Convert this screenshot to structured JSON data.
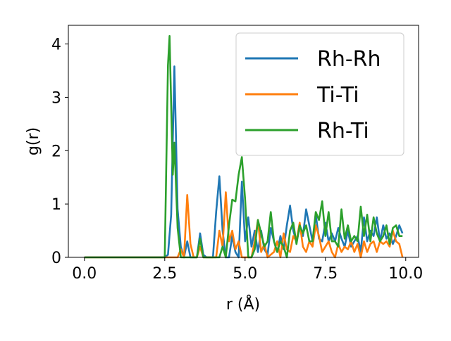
{
  "chart_data": {
    "type": "line",
    "xlabel": "r (Å)",
    "ylabel": "g(r)",
    "xlim": [
      -0.5,
      10.4
    ],
    "ylim": [
      0,
      4.35
    ],
    "xticks": [
      0.0,
      2.5,
      5.0,
      7.5,
      10.0
    ],
    "xtick_labels": [
      "0.0",
      "2.5",
      "5.0",
      "7.5",
      "10.0"
    ],
    "yticks": [
      0,
      1,
      2,
      3,
      4
    ],
    "ytick_labels": [
      "0",
      "1",
      "2",
      "3",
      "4"
    ],
    "grid": false,
    "legend_position": "upper right",
    "series": [
      {
        "name": "Rh-Rh",
        "color": "#1f77b4",
        "points": [
          [
            0.0,
            0.0
          ],
          [
            2.5,
            0.0
          ],
          [
            2.6,
            0.05
          ],
          [
            2.7,
            0.8
          ],
          [
            2.8,
            3.58
          ],
          [
            2.9,
            0.9
          ],
          [
            3.0,
            0.2
          ],
          [
            3.1,
            0.0
          ],
          [
            3.2,
            0.3
          ],
          [
            3.3,
            0.0
          ],
          [
            3.5,
            0.0
          ],
          [
            3.6,
            0.45
          ],
          [
            3.7,
            0.05
          ],
          [
            3.8,
            0.0
          ],
          [
            4.0,
            0.0
          ],
          [
            4.1,
            0.85
          ],
          [
            4.2,
            1.52
          ],
          [
            4.3,
            0.5
          ],
          [
            4.4,
            0.0
          ],
          [
            4.5,
            0.0
          ],
          [
            4.6,
            0.4
          ],
          [
            4.7,
            0.1
          ],
          [
            4.8,
            0.0
          ],
          [
            4.9,
            1.42
          ],
          [
            5.0,
            0.3
          ],
          [
            5.1,
            0.75
          ],
          [
            5.2,
            0.2
          ],
          [
            5.3,
            0.5
          ],
          [
            5.4,
            0.1
          ],
          [
            5.5,
            0.5
          ],
          [
            5.6,
            0.15
          ],
          [
            5.7,
            0.05
          ],
          [
            5.8,
            0.55
          ],
          [
            5.9,
            0.3
          ],
          [
            6.0,
            0.1
          ],
          [
            6.1,
            0.4
          ],
          [
            6.2,
            0.15
          ],
          [
            6.3,
            0.6
          ],
          [
            6.4,
            0.97
          ],
          [
            6.5,
            0.5
          ],
          [
            6.6,
            0.3
          ],
          [
            6.7,
            0.55
          ],
          [
            6.8,
            0.4
          ],
          [
            6.9,
            0.9
          ],
          [
            7.0,
            0.6
          ],
          [
            7.1,
            0.3
          ],
          [
            7.2,
            0.8
          ],
          [
            7.3,
            0.35
          ],
          [
            7.4,
            0.3
          ],
          [
            7.5,
            0.65
          ],
          [
            7.6,
            0.3
          ],
          [
            7.7,
            0.45
          ],
          [
            7.8,
            0.3
          ],
          [
            7.9,
            0.55
          ],
          [
            8.0,
            0.35
          ],
          [
            8.1,
            0.2
          ],
          [
            8.2,
            0.5
          ],
          [
            8.3,
            0.2
          ],
          [
            8.4,
            0.3
          ],
          [
            8.5,
            0.4
          ],
          [
            8.6,
            0.1
          ],
          [
            8.7,
            0.75
          ],
          [
            8.8,
            0.3
          ],
          [
            8.9,
            0.5
          ],
          [
            9.0,
            0.4
          ],
          [
            9.1,
            0.75
          ],
          [
            9.2,
            0.3
          ],
          [
            9.3,
            0.6
          ],
          [
            9.4,
            0.35
          ],
          [
            9.5,
            0.45
          ],
          [
            9.6,
            0.25
          ],
          [
            9.7,
            0.4
          ],
          [
            9.8,
            0.6
          ],
          [
            9.9,
            0.45
          ]
        ]
      },
      {
        "name": "Ti-Ti",
        "color": "#ff7f0e",
        "points": [
          [
            0.0,
            0.0
          ],
          [
            2.5,
            0.0
          ],
          [
            2.9,
            0.0
          ],
          [
            3.0,
            0.15
          ],
          [
            3.1,
            0.0
          ],
          [
            3.2,
            1.17
          ],
          [
            3.3,
            0.25
          ],
          [
            3.4,
            0.0
          ],
          [
            3.5,
            0.0
          ],
          [
            3.6,
            0.2
          ],
          [
            3.7,
            0.0
          ],
          [
            4.1,
            0.0
          ],
          [
            4.2,
            0.5
          ],
          [
            4.3,
            0.2
          ],
          [
            4.4,
            1.22
          ],
          [
            4.5,
            0.3
          ],
          [
            4.6,
            0.5
          ],
          [
            4.7,
            0.15
          ],
          [
            4.8,
            0.3
          ],
          [
            4.9,
            0.0
          ],
          [
            5.2,
            0.0
          ],
          [
            5.3,
            0.3
          ],
          [
            5.4,
            0.7
          ],
          [
            5.5,
            0.1
          ],
          [
            5.6,
            0.25
          ],
          [
            5.7,
            0.0
          ],
          [
            5.9,
            0.1
          ],
          [
            6.0,
            0.3
          ],
          [
            6.1,
            0.0
          ],
          [
            6.2,
            0.45
          ],
          [
            6.3,
            0.15
          ],
          [
            6.4,
            0.1
          ],
          [
            6.5,
            0.4
          ],
          [
            6.6,
            0.3
          ],
          [
            6.7,
            0.65
          ],
          [
            6.8,
            0.2
          ],
          [
            6.9,
            0.1
          ],
          [
            7.0,
            0.3
          ],
          [
            7.1,
            0.2
          ],
          [
            7.2,
            0.6
          ],
          [
            7.3,
            0.4
          ],
          [
            7.4,
            0.1
          ],
          [
            7.5,
            0.2
          ],
          [
            7.6,
            0.3
          ],
          [
            7.7,
            0.1
          ],
          [
            7.8,
            0.0
          ],
          [
            7.9,
            0.25
          ],
          [
            8.0,
            0.1
          ],
          [
            8.1,
            0.2
          ],
          [
            8.2,
            0.15
          ],
          [
            8.3,
            0.3
          ],
          [
            8.4,
            0.1
          ],
          [
            8.5,
            0.25
          ],
          [
            8.6,
            0.0
          ],
          [
            8.7,
            0.3
          ],
          [
            8.8,
            0.1
          ],
          [
            8.9,
            0.25
          ],
          [
            9.0,
            0.3
          ],
          [
            9.1,
            0.1
          ],
          [
            9.2,
            0.3
          ],
          [
            9.3,
            0.25
          ],
          [
            9.4,
            0.3
          ],
          [
            9.5,
            0.2
          ],
          [
            9.6,
            0.5
          ],
          [
            9.7,
            0.3
          ],
          [
            9.8,
            0.25
          ],
          [
            9.9,
            0.0
          ]
        ]
      },
      {
        "name": "Rh-Ti",
        "color": "#2ca02c",
        "points": [
          [
            0.0,
            0.0
          ],
          [
            2.4,
            0.0
          ],
          [
            2.5,
            0.0
          ],
          [
            2.6,
            3.6
          ],
          [
            2.65,
            4.15
          ],
          [
            2.75,
            1.55
          ],
          [
            2.8,
            2.15
          ],
          [
            2.9,
            0.55
          ],
          [
            3.0,
            0.0
          ],
          [
            3.5,
            0.0
          ],
          [
            3.6,
            0.35
          ],
          [
            3.7,
            0.0
          ],
          [
            4.0,
            0.0
          ],
          [
            4.1,
            0.0
          ],
          [
            4.2,
            0.0
          ],
          [
            4.3,
            0.2
          ],
          [
            4.4,
            0.0
          ],
          [
            4.5,
            0.6
          ],
          [
            4.6,
            1.08
          ],
          [
            4.7,
            1.05
          ],
          [
            4.8,
            1.55
          ],
          [
            4.9,
            1.88
          ],
          [
            5.0,
            1.1
          ],
          [
            5.1,
            0.0
          ],
          [
            5.2,
            0.0
          ],
          [
            5.3,
            0.15
          ],
          [
            5.4,
            0.7
          ],
          [
            5.5,
            0.45
          ],
          [
            5.6,
            0.2
          ],
          [
            5.7,
            0.3
          ],
          [
            5.8,
            0.85
          ],
          [
            5.9,
            0.3
          ],
          [
            6.0,
            0.1
          ],
          [
            6.1,
            0.3
          ],
          [
            6.2,
            0.2
          ],
          [
            6.3,
            0.0
          ],
          [
            6.4,
            0.5
          ],
          [
            6.5,
            0.65
          ],
          [
            6.6,
            0.25
          ],
          [
            6.7,
            0.6
          ],
          [
            6.8,
            0.45
          ],
          [
            6.9,
            0.6
          ],
          [
            7.0,
            0.3
          ],
          [
            7.1,
            0.3
          ],
          [
            7.2,
            0.85
          ],
          [
            7.3,
            0.7
          ],
          [
            7.4,
            1.05
          ],
          [
            7.5,
            0.4
          ],
          [
            7.6,
            0.85
          ],
          [
            7.7,
            0.3
          ],
          [
            7.8,
            0.3
          ],
          [
            7.9,
            0.2
          ],
          [
            8.0,
            0.9
          ],
          [
            8.1,
            0.35
          ],
          [
            8.2,
            0.6
          ],
          [
            8.3,
            0.3
          ],
          [
            8.4,
            0.4
          ],
          [
            8.5,
            0.3
          ],
          [
            8.6,
            0.95
          ],
          [
            8.7,
            0.4
          ],
          [
            8.8,
            0.8
          ],
          [
            8.9,
            0.3
          ],
          [
            9.0,
            0.75
          ],
          [
            9.1,
            0.45
          ],
          [
            9.2,
            0.3
          ],
          [
            9.3,
            0.4
          ],
          [
            9.4,
            0.6
          ],
          [
            9.5,
            0.25
          ],
          [
            9.6,
            0.55
          ],
          [
            9.7,
            0.6
          ],
          [
            9.8,
            0.4
          ],
          [
            9.9,
            0.4
          ]
        ]
      }
    ]
  }
}
